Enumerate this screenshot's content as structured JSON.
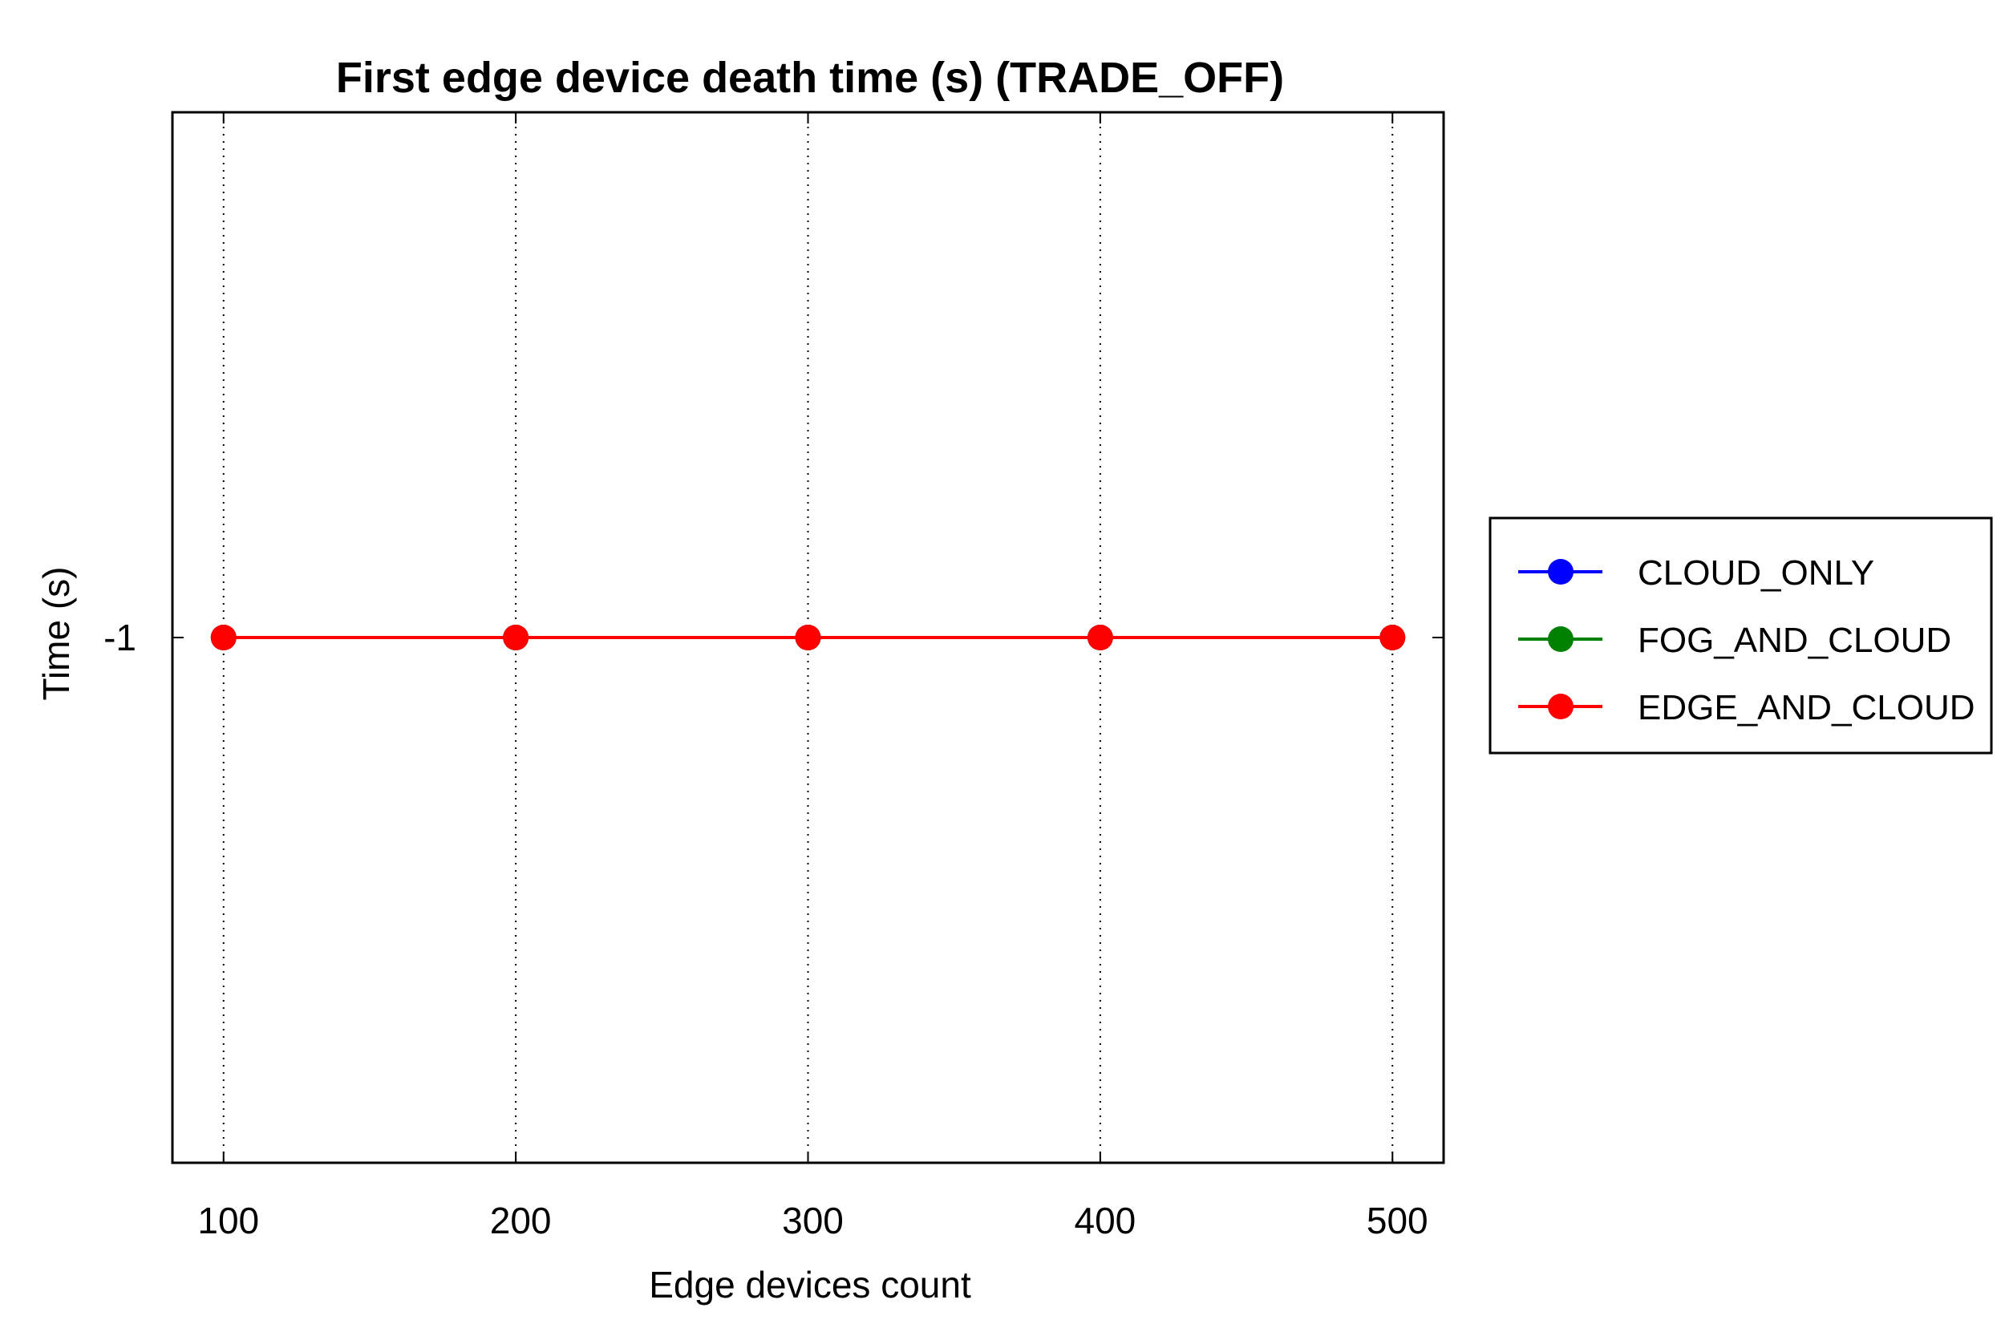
{
  "chart_data": {
    "type": "line",
    "title": "First edge device death time (s) (TRADE_OFF)",
    "xlabel": "Edge devices count",
    "ylabel": "Time (s)",
    "x": [
      100,
      200,
      300,
      400,
      500
    ],
    "x_ticks": [
      "100",
      "200",
      "300",
      "400",
      "500"
    ],
    "y_ticks": [
      "-1"
    ],
    "xlim": [
      82.5,
      517.5
    ],
    "ylim": [
      -2,
      0
    ],
    "grid": "vertical dotted",
    "legend_position": "right-outside",
    "series": [
      {
        "name": "CLOUD_ONLY",
        "color": "#0000ff",
        "values": [
          -1,
          -1,
          -1,
          -1,
          -1
        ]
      },
      {
        "name": "FOG_AND_CLOUD",
        "color": "#008000",
        "values": [
          -1,
          -1,
          -1,
          -1,
          -1
        ]
      },
      {
        "name": "EDGE_AND_CLOUD",
        "color": "#ff0000",
        "values": [
          -1,
          -1,
          -1,
          -1,
          -1
        ]
      }
    ]
  }
}
